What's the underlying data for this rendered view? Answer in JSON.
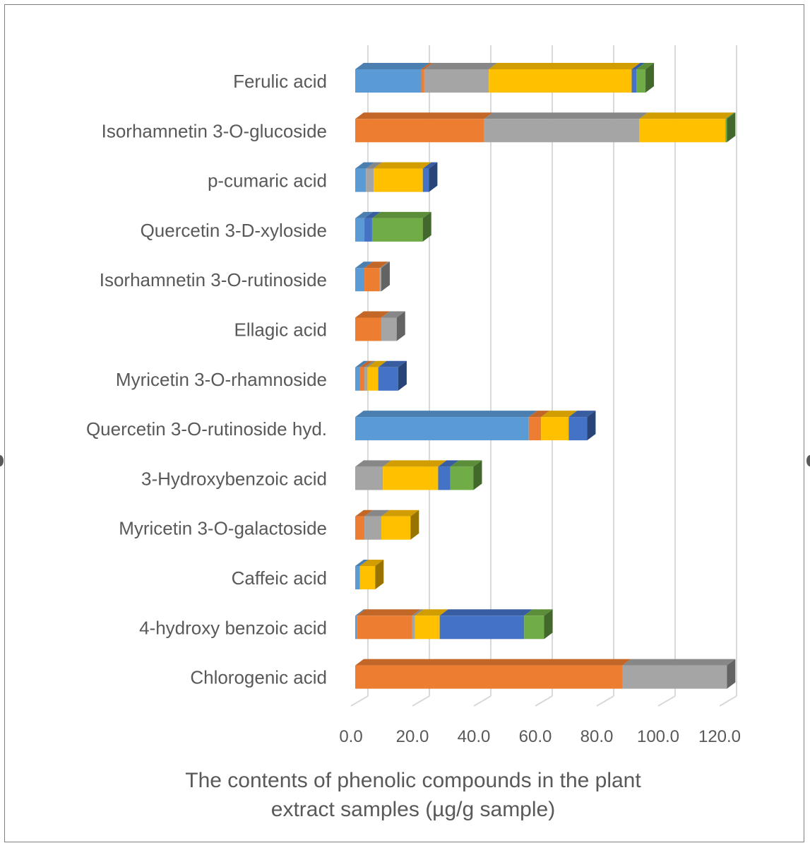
{
  "chart_data": {
    "type": "bar",
    "orientation": "horizontal",
    "stacked": true,
    "style": "3d",
    "categories": [
      "Ferulic acid",
      "Isorhamnetin 3-O-glucoside",
      "p-cumaric acid",
      "Quercetin 3-D-xyloside",
      "Isorhamnetin 3-O-rutinoside",
      "Ellagic acid",
      "Myricetin 3-O-rhamnoside",
      "Quercetin 3-O-rutinoside hyd.",
      "3-Hydroxybenzoic acid",
      "Myricetin 3-O-galactoside",
      "Caffeic acid",
      "4-hydroxy benzoic acid",
      "Chlorogenic acid"
    ],
    "series": [
      {
        "color": "#5b9bd5",
        "values": [
          21.5,
          0,
          3.5,
          3.0,
          3.0,
          0,
          1.5,
          56.5,
          0,
          0,
          1.5,
          0.5,
          0
        ]
      },
      {
        "color": "#ed7d31",
        "values": [
          1.0,
          42.0,
          0,
          0,
          5.0,
          8.5,
          1.5,
          4.0,
          0,
          3.0,
          0,
          18.0,
          87.0
        ]
      },
      {
        "color": "#a5a5a5",
        "values": [
          21.0,
          50.5,
          2.5,
          0,
          0.5,
          5.0,
          1.0,
          0,
          9.0,
          5.5,
          0,
          1.0,
          34.0
        ]
      },
      {
        "color": "#ffc000",
        "values": [
          46.5,
          28.0,
          16.0,
          0,
          0,
          0,
          3.5,
          9.0,
          18.0,
          9.5,
          5.0,
          8.0,
          0
        ]
      },
      {
        "color": "#4472c4",
        "values": [
          1.5,
          0,
          2.0,
          2.5,
          0,
          0,
          6.5,
          6.0,
          4.0,
          0,
          0,
          27.5,
          0
        ]
      },
      {
        "color": "#70ad47",
        "values": [
          3.0,
          0.5,
          0,
          16.5,
          0,
          0,
          0,
          0,
          7.5,
          0,
          0,
          6.5,
          0
        ]
      }
    ],
    "xlim": [
      0,
      120
    ],
    "ticks": [
      "0.0",
      "20.0",
      "40.0",
      "60.0",
      "80.0",
      "100.0",
      "120.0"
    ],
    "xlabel": "The contents of phenolic compounds in the plant extract samples (µg/g sample)",
    "xlabel_lines": [
      "The contents of phenolic compounds in the plant",
      "extract samples (µg/g sample)"
    ],
    "ylabel": "",
    "title": "",
    "grid": "vertical",
    "legend": "none"
  }
}
